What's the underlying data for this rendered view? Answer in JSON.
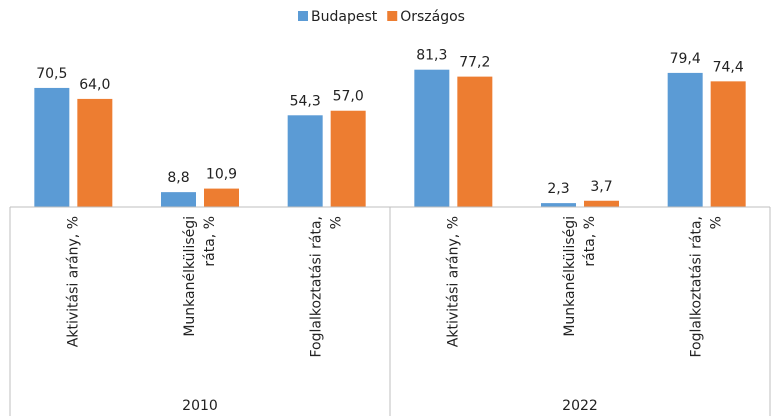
{
  "chart_data": {
    "type": "bar",
    "categories": [
      [
        "Aktivitási arány, %"
      ],
      [
        "Munkanélküliségi",
        "ráta, %"
      ],
      [
        "Foglalkoztatási ráta,",
        "%"
      ],
      [
        "Aktivitási arány, %"
      ],
      [
        "Munkanélküliségi",
        "ráta, %"
      ],
      [
        "Foglalkoztatási ráta,",
        "%"
      ]
    ],
    "groups": [
      "2010",
      "2022"
    ],
    "series": [
      {
        "name": "Budapest",
        "color": "#5b9bd5",
        "values": [
          70.5,
          8.8,
          54.3,
          81.3,
          2.3,
          79.4
        ],
        "value_labels": [
          "70,5",
          "8,8",
          "54,3",
          "81,3",
          "2,3",
          "79,4"
        ]
      },
      {
        "name": "Országos",
        "color": "#ed7d31",
        "values": [
          64.0,
          10.9,
          57.0,
          77.2,
          3.7,
          74.4
        ],
        "value_labels": [
          "64,0",
          "10,9",
          "57,0",
          "77,2",
          "3,7",
          "74,4"
        ]
      }
    ],
    "ylim": [
      0,
      90
    ],
    "legend": "top"
  }
}
